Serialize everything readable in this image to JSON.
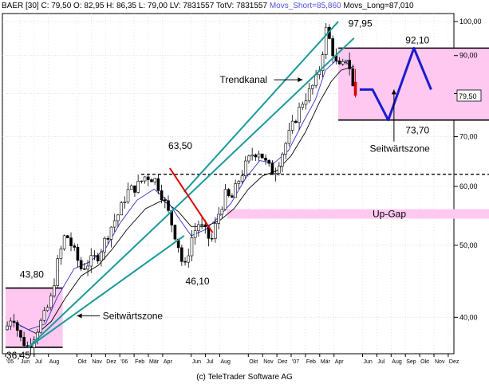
{
  "header": {
    "main": "BAER [30] C: 79,50 O: 82,95 H: 86,35 L: 79,00 LV: 7831557 TotV: 7831557",
    "movs_short": "Movs_Short=85,860",
    "movs_long": "Movs_Long=87,010"
  },
  "footer": "(c) TeleTrader Software AG",
  "colors": {
    "candle": "#000000",
    "channel": "#1a9a9a",
    "downtrend": "#e00000",
    "zone_fill": "#ffc8f0",
    "projection": "#1a1ad0",
    "ma_short": "#3030d0",
    "ma_long": "#000000",
    "last_candle": "#e00000"
  },
  "chart_data": {
    "type": "candlestick",
    "y_scale": "log",
    "ylim": [
      36,
      102
    ],
    "y_ticks": [
      "100,00",
      "90,00",
      "80,00",
      "70,00",
      "60,00",
      "50,00",
      "40,00"
    ],
    "y_tick_values": [
      100,
      90,
      80,
      70,
      60,
      50,
      40
    ],
    "last_price_label": "79,50",
    "last_price": 79.5,
    "x_ticks": [
      "'05",
      "Jun",
      "Jul",
      "Aug",
      "Okt",
      "Nov",
      "Dez",
      "'06",
      "Feb",
      "Mär",
      "Apr",
      "Jun",
      "Jul",
      "Aug",
      "Okt",
      "Nov",
      "Dez",
      "'07",
      "Feb",
      "Mär",
      "Apr",
      "Jun",
      "Jul",
      "Aug",
      "Sep",
      "Okt",
      "Nov",
      "Dez"
    ],
    "x_tick_months": [
      0,
      1,
      2,
      3,
      5,
      6,
      7,
      8,
      9,
      10,
      11,
      13,
      14,
      15,
      17,
      18,
      19,
      20,
      21,
      22,
      23,
      25,
      26,
      27,
      28,
      29,
      30,
      31
    ],
    "grid": true,
    "price_path": [
      [
        0,
        38.5
      ],
      [
        0.5,
        40.5
      ],
      [
        1,
        37.5
      ],
      [
        1.6,
        36.45
      ],
      [
        2.2,
        38.5
      ],
      [
        2.8,
        40.5
      ],
      [
        3.2,
        42.5
      ],
      [
        3.6,
        47
      ],
      [
        4.2,
        52
      ],
      [
        4.8,
        49
      ],
      [
        5.3,
        46.5
      ],
      [
        5.9,
        47.5
      ],
      [
        6.5,
        48.5
      ],
      [
        7,
        51
      ],
      [
        7.5,
        53.5
      ],
      [
        8,
        55.5
      ],
      [
        8.5,
        59
      ],
      [
        9.2,
        60
      ],
      [
        9.8,
        62
      ],
      [
        10.4,
        61.5
      ],
      [
        10.8,
        59.5
      ],
      [
        11.3,
        56
      ],
      [
        11.7,
        53
      ],
      [
        12.1,
        50
      ],
      [
        12.5,
        46.1
      ],
      [
        13,
        51
      ],
      [
        13.5,
        53.5
      ],
      [
        14,
        52
      ],
      [
        14.4,
        50.5
      ],
      [
        14.9,
        55
      ],
      [
        15.4,
        58.5
      ],
      [
        15.8,
        57.5
      ],
      [
        16.3,
        61
      ],
      [
        16.8,
        64
      ],
      [
        17.3,
        66.5
      ],
      [
        17.8,
        67
      ],
      [
        18.3,
        64
      ],
      [
        18.8,
        62.5
      ],
      [
        19.3,
        66
      ],
      [
        19.8,
        70
      ],
      [
        20.3,
        74
      ],
      [
        20.8,
        78
      ],
      [
        21.2,
        80
      ],
      [
        21.7,
        83
      ],
      [
        22.1,
        88
      ],
      [
        22.4,
        97.95
      ],
      [
        22.8,
        93
      ],
      [
        23.1,
        88
      ],
      [
        23.5,
        86
      ],
      [
        23.9,
        90
      ],
      [
        24.2,
        85
      ],
      [
        24.4,
        79.5
      ]
    ],
    "ma_short": [
      [
        0.5,
        39.5
      ],
      [
        1.6,
        38.5
      ],
      [
        2.8,
        39.2
      ],
      [
        3.6,
        42.5
      ],
      [
        4.8,
        46.5
      ],
      [
        5.9,
        47.5
      ],
      [
        7,
        49.5
      ],
      [
        8,
        53.5
      ],
      [
        9.2,
        57.5
      ],
      [
        10.4,
        59.5
      ],
      [
        11.3,
        57.5
      ],
      [
        12.1,
        54.5
      ],
      [
        13,
        51.5
      ],
      [
        14,
        52.5
      ],
      [
        14.9,
        54.5
      ],
      [
        15.8,
        57
      ],
      [
        16.8,
        61.5
      ],
      [
        17.8,
        65
      ],
      [
        18.8,
        64.5
      ],
      [
        19.8,
        67
      ],
      [
        20.8,
        73
      ],
      [
        21.7,
        78.5
      ],
      [
        22.4,
        86
      ],
      [
        23.1,
        88.5
      ],
      [
        23.9,
        88
      ],
      [
        24.4,
        85.86
      ]
    ],
    "ma_long": [
      [
        1,
        39
      ],
      [
        2.2,
        38
      ],
      [
        3.2,
        39.5
      ],
      [
        4.2,
        42.5
      ],
      [
        5.3,
        45.5
      ],
      [
        6.5,
        47
      ],
      [
        7.5,
        49.5
      ],
      [
        8.5,
        52.5
      ],
      [
        9.8,
        56
      ],
      [
        11,
        57.5
      ],
      [
        12.1,
        55.5
      ],
      [
        13,
        53
      ],
      [
        14,
        53
      ],
      [
        15,
        54
      ],
      [
        16,
        56
      ],
      [
        17,
        59.5
      ],
      [
        18,
        62
      ],
      [
        19,
        63
      ],
      [
        20,
        66
      ],
      [
        21,
        71
      ],
      [
        22,
        78
      ],
      [
        22.8,
        83
      ],
      [
        23.5,
        86
      ],
      [
        24.4,
        87.01
      ]
    ],
    "trend_channel": {
      "label": "Trendkanal",
      "lower": [
        [
          1.6,
          36.45
        ],
        [
          24.4,
          95
        ]
      ],
      "upper": [
        [
          12.5,
          59
        ],
        [
          23.3,
          100
        ]
      ]
    },
    "early_trendline": [
      [
        1.6,
        36.45
      ],
      [
        12.5,
        51.5
      ]
    ],
    "downtrend_line": [
      [
        11.5,
        63.5
      ],
      [
        14.5,
        52
      ]
    ],
    "resistance_line": {
      "from": 9.5,
      "to": 34,
      "value": 62.3
    },
    "zones": [
      {
        "label": "Seitwärtszone",
        "x": [
          0,
          4
        ],
        "y": [
          36.45,
          43.8
        ]
      },
      {
        "label": "Seitwärtszone",
        "x": [
          23.3,
          34
        ],
        "y": [
          73.7,
          92.1
        ]
      }
    ],
    "up_gap": {
      "label": "Up-Gap",
      "x": [
        15.5,
        34
      ],
      "y": [
        54.7,
        55.5
      ]
    },
    "projection": [
      [
        24.8,
        81
      ],
      [
        25.7,
        81
      ],
      [
        26.8,
        73.7
      ],
      [
        28.6,
        92.1
      ],
      [
        29.8,
        81
      ]
    ],
    "annotations": [
      {
        "text": "36,45",
        "value": 36.45
      },
      {
        "text": "43,80",
        "value": 43.8
      },
      {
        "text": "63,50",
        "value": 63.5
      },
      {
        "text": "46,10",
        "value": 46.1
      },
      {
        "text": "97,95",
        "value": 97.95
      },
      {
        "text": "92,10",
        "value": 92.1
      },
      {
        "text": "73,70",
        "value": 73.7
      }
    ]
  }
}
